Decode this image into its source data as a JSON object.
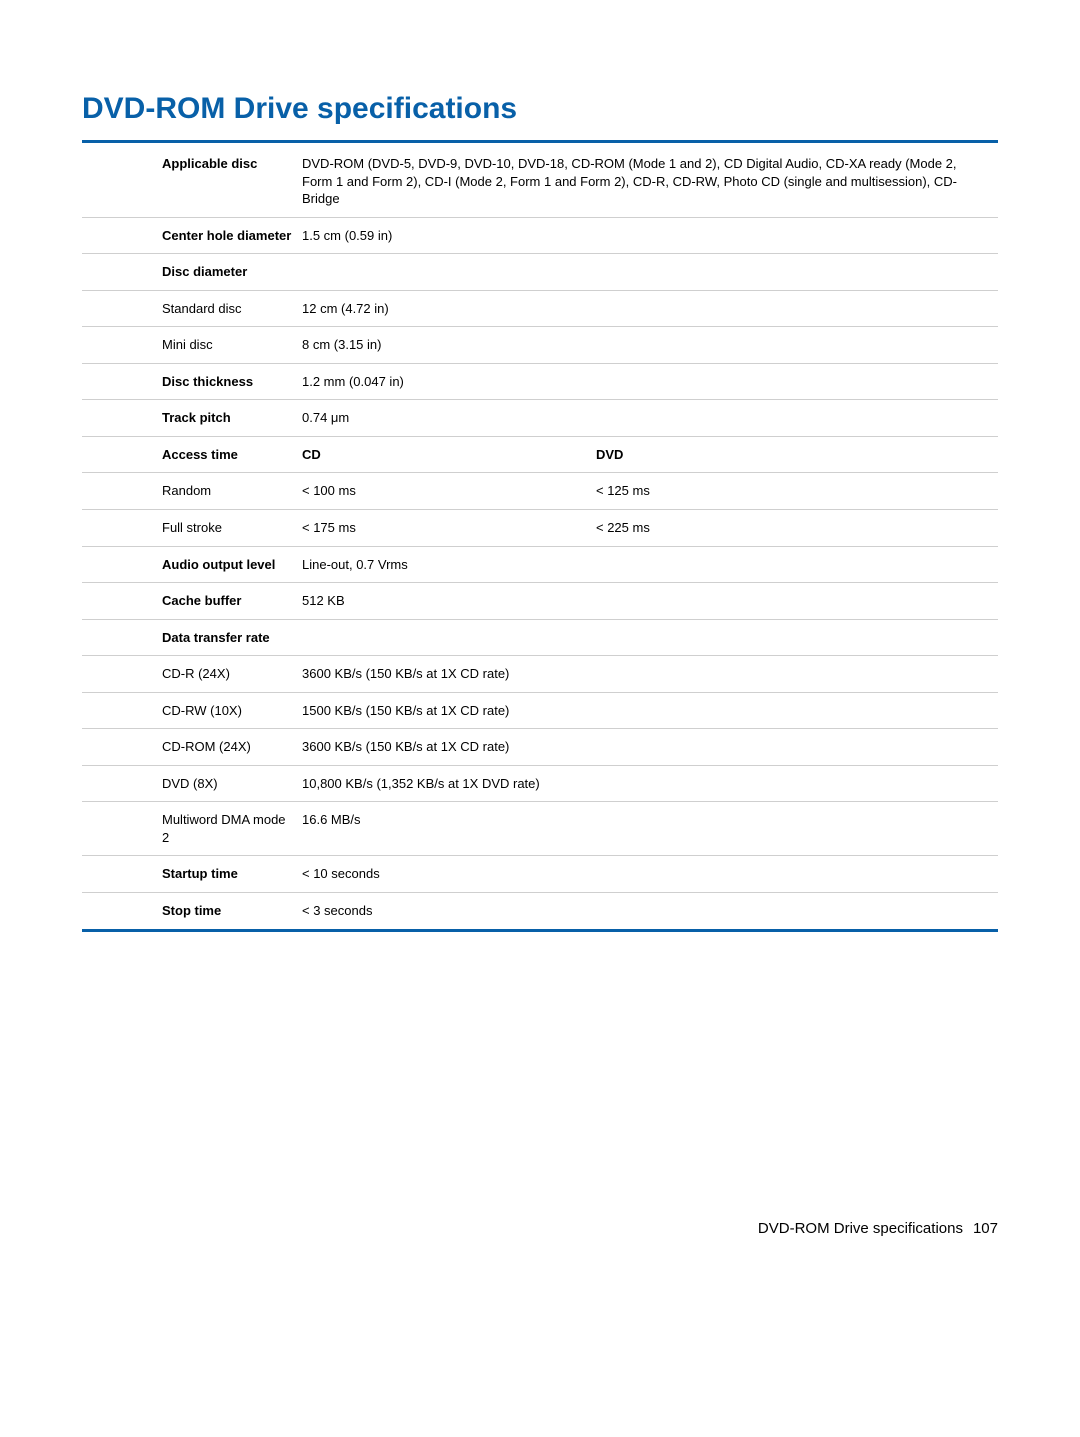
{
  "heading": "DVD-ROM Drive specifications",
  "accent_color": "#0860a8",
  "rows": [
    {
      "label": "Applicable disc",
      "label_bold": true,
      "col2": "DVD-ROM (DVD-5, DVD-9, DVD-10, DVD-18, CD-ROM (Mode 1 and 2), CD Digital Audio, CD-XA ready (Mode 2, Form 1 and Form 2), CD-I (Mode 2, Form 1 and Form 2), CD-R, CD-RW, Photo CD (single and multisession), CD-Bridge",
      "span": 2
    },
    {
      "label": "Center hole diameter",
      "label_bold": true,
      "col2": "1.5 cm (0.59 in)",
      "span": 2
    },
    {
      "label": "Disc diameter",
      "label_bold": true,
      "col2": "",
      "span": 2
    },
    {
      "label": "Standard disc",
      "label_bold": false,
      "col2": "12 cm (4.72 in)",
      "span": 2
    },
    {
      "label": "Mini disc",
      "label_bold": false,
      "col2": "8 cm (3.15 in)",
      "span": 2
    },
    {
      "label": "Disc thickness",
      "label_bold": true,
      "col2": "1.2 mm (0.047 in)",
      "span": 2
    },
    {
      "label": "Track pitch",
      "label_bold": true,
      "col2": "0.74 μm",
      "span": 2
    },
    {
      "label": "Access time",
      "label_bold": true,
      "col2": "CD",
      "col2_bold": true,
      "col3": "DVD",
      "col3_bold": true
    },
    {
      "label": "Random",
      "label_bold": false,
      "col2": "< 100 ms",
      "col3": "< 125 ms"
    },
    {
      "label": "Full stroke",
      "label_bold": false,
      "col2": "< 175 ms",
      "col3": "< 225 ms"
    },
    {
      "label": "Audio output level",
      "label_bold": true,
      "col2": "Line-out, 0.7 Vrms",
      "span": 2
    },
    {
      "label": "Cache buffer",
      "label_bold": true,
      "col2": "512 KB",
      "span": 2
    },
    {
      "label": "Data transfer rate",
      "label_bold": true,
      "col2": "",
      "span": 2
    },
    {
      "label": "CD-R (24X)",
      "label_bold": false,
      "col2": "3600 KB/s (150 KB/s at 1X CD rate)",
      "span": 2
    },
    {
      "label": "CD-RW (10X)",
      "label_bold": false,
      "col2": "1500 KB/s (150 KB/s at 1X CD rate)",
      "span": 2
    },
    {
      "label": "CD-ROM (24X)",
      "label_bold": false,
      "col2": "3600 KB/s (150 KB/s at 1X CD rate)",
      "span": 2
    },
    {
      "label": "DVD (8X)",
      "label_bold": false,
      "col2": "10,800 KB/s (1,352 KB/s at 1X DVD rate)",
      "span": 2
    },
    {
      "label": "Multiword DMA mode 2",
      "label_bold": false,
      "col2": "16.6 MB/s",
      "span": 2
    },
    {
      "label": "Startup time",
      "label_bold": true,
      "col2": "< 10 seconds",
      "span": 2
    },
    {
      "label": "Stop time",
      "label_bold": true,
      "col2": "< 3 seconds",
      "span": 2
    }
  ],
  "footer": {
    "text": "DVD-ROM Drive specifications",
    "page": "107"
  }
}
